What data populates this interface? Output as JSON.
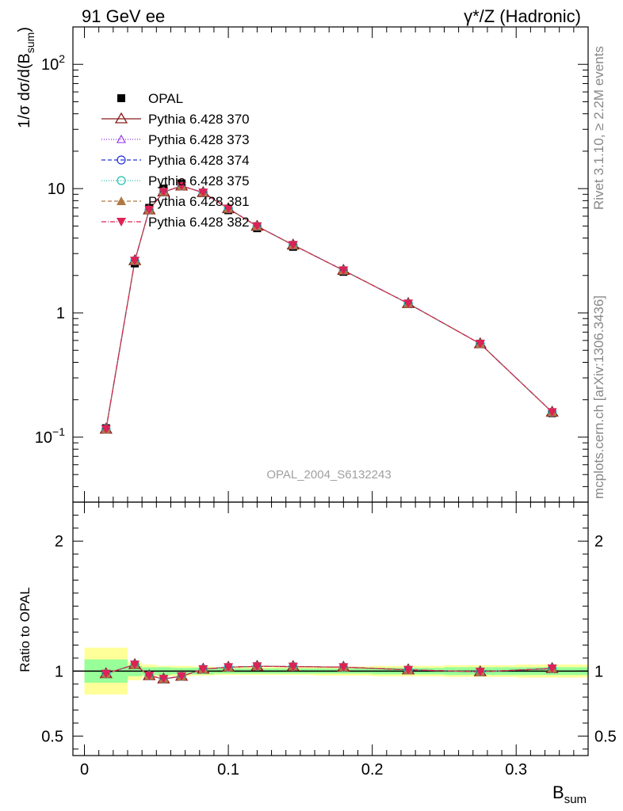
{
  "header": {
    "left": "91 GeV ee",
    "right_prefix": "γ*/Z",
    "right_suffix": " (Hadronic)"
  },
  "side_labels": {
    "rivet": "Rivet 3.1.10, ≥ 2.2M events",
    "mcplots": "mcplots.cern.ch [arXiv:1306.3436]"
  },
  "watermark": "OPAL_2004_S6132243",
  "colors": {
    "data": "#000000",
    "band_inner": "#99ff99",
    "band_outer": "#ffff99"
  },
  "chart_data": [
    {
      "type": "line",
      "panel": "main",
      "ylabel_main": "1/σ dσ/d(B",
      "ylabel_sub": "sum",
      "ylabel_end": ")",
      "yscale": "log",
      "ylim": [
        0.03,
        200
      ],
      "xlim": [
        -0.008,
        0.35
      ],
      "yticks": [
        {
          "v": 100,
          "base": "10",
          "exp": "2"
        },
        {
          "v": 10,
          "base": "10",
          "exp": ""
        },
        {
          "v": 1,
          "base": "1",
          "exp": ""
        },
        {
          "v": 0.1,
          "base": "10",
          "exp": "−1"
        }
      ],
      "x": [
        0.015,
        0.035,
        0.045,
        0.055,
        0.0675,
        0.0825,
        0.1,
        0.12,
        0.145,
        0.18,
        0.225,
        0.275,
        0.325
      ],
      "data_series": {
        "name": "OPAL",
        "values": [
          0.118,
          2.5,
          7.0,
          10.0,
          11.0,
          9.2,
          6.7,
          4.8,
          3.4,
          2.14,
          1.18,
          0.565,
          0.156
        ]
      },
      "series": [
        {
          "name": "Pythia 6.428 370",
          "color": "#8b1a1a",
          "marker": "triangle-open",
          "dash": "",
          "values": [
            0.116,
            2.63,
            6.75,
            9.4,
            10.5,
            9.3,
            6.9,
            4.98,
            3.52,
            2.2,
            1.19,
            0.565,
            0.159
          ]
        },
        {
          "name": "Pythia 6.428 373",
          "color": "#8a2be2",
          "marker": "triangle-open-small",
          "dash": "1,2",
          "values": [
            0.116,
            2.63,
            6.75,
            9.4,
            10.5,
            9.3,
            6.9,
            4.98,
            3.52,
            2.2,
            1.19,
            0.565,
            0.159
          ]
        },
        {
          "name": "Pythia 6.428 374",
          "color": "#2233dd",
          "marker": "circle-open",
          "dash": "5,3",
          "values": [
            0.116,
            2.63,
            6.75,
            9.4,
            10.5,
            9.3,
            6.9,
            4.98,
            3.52,
            2.2,
            1.19,
            0.565,
            0.159
          ]
        },
        {
          "name": "Pythia 6.428 375",
          "color": "#20c0b0",
          "marker": "circle-open",
          "dash": "1,2",
          "values": [
            0.116,
            2.63,
            6.75,
            9.4,
            10.5,
            9.3,
            6.9,
            4.98,
            3.52,
            2.2,
            1.19,
            0.565,
            0.159
          ]
        },
        {
          "name": "Pythia 6.428 381",
          "color": "#b07840",
          "marker": "triangle-filled",
          "dash": "5,3",
          "values": [
            0.116,
            2.63,
            6.75,
            9.4,
            10.5,
            9.3,
            6.9,
            4.98,
            3.52,
            2.2,
            1.19,
            0.565,
            0.159
          ]
        },
        {
          "name": "Pythia 6.428 382",
          "color": "#dd2255",
          "marker": "triangle-down-filled",
          "dash": "6,2,1,2",
          "values": [
            0.116,
            2.63,
            6.75,
            9.4,
            10.5,
            9.3,
            6.9,
            4.98,
            3.52,
            2.2,
            1.19,
            0.565,
            0.159
          ]
        }
      ]
    },
    {
      "type": "line",
      "panel": "ratio",
      "ylabel": "Ratio to OPAL",
      "xlabel_main": "B",
      "xlabel_sub": "sum",
      "ylim": [
        0.35,
        2.3
      ],
      "xlim": [
        -0.008,
        0.35
      ],
      "yticks": [
        {
          "v": 0.5,
          "label": "0.5"
        },
        {
          "v": 1,
          "label": "1"
        },
        {
          "v": 2,
          "label": "2"
        }
      ],
      "xticks": [
        {
          "v": 0,
          "label": "0"
        },
        {
          "v": 0.1,
          "label": "0.1"
        },
        {
          "v": 0.2,
          "label": "0.2"
        },
        {
          "v": 0.3,
          "label": "0.3"
        }
      ],
      "bins": [
        [
          0,
          0.03
        ],
        [
          0.03,
          0.04
        ],
        [
          0.04,
          0.05
        ],
        [
          0.05,
          0.06
        ],
        [
          0.06,
          0.075
        ],
        [
          0.075,
          0.09
        ],
        [
          0.09,
          0.11
        ],
        [
          0.11,
          0.13
        ],
        [
          0.13,
          0.16
        ],
        [
          0.16,
          0.2
        ],
        [
          0.2,
          0.25
        ],
        [
          0.25,
          0.3
        ],
        [
          0.3,
          0.35
        ]
      ],
      "band_inner": [
        [
          0.91,
          1.09
        ],
        [
          0.96,
          1.04
        ],
        [
          0.97,
          1.03
        ],
        [
          0.97,
          1.03
        ],
        [
          0.975,
          1.025
        ],
        [
          0.975,
          1.025
        ],
        [
          0.98,
          1.02
        ],
        [
          0.98,
          1.02
        ],
        [
          0.98,
          1.02
        ],
        [
          0.98,
          1.02
        ],
        [
          0.975,
          1.025
        ],
        [
          0.97,
          1.03
        ],
        [
          0.97,
          1.03
        ]
      ],
      "band_outer": [
        [
          0.82,
          1.18
        ],
        [
          0.93,
          1.07
        ],
        [
          0.95,
          1.05
        ],
        [
          0.96,
          1.04
        ],
        [
          0.96,
          1.04
        ],
        [
          0.965,
          1.035
        ],
        [
          0.97,
          1.03
        ],
        [
          0.97,
          1.03
        ],
        [
          0.97,
          1.03
        ],
        [
          0.965,
          1.035
        ],
        [
          0.96,
          1.04
        ],
        [
          0.955,
          1.045
        ],
        [
          0.95,
          1.05
        ]
      ],
      "x": [
        0.015,
        0.035,
        0.045,
        0.055,
        0.0675,
        0.0825,
        0.1,
        0.12,
        0.145,
        0.18,
        0.225,
        0.275,
        0.325
      ],
      "ratio_values": [
        0.98,
        1.05,
        0.965,
        0.94,
        0.96,
        1.015,
        1.03,
        1.037,
        1.035,
        1.03,
        1.01,
        0.995,
        1.02
      ]
    }
  ]
}
